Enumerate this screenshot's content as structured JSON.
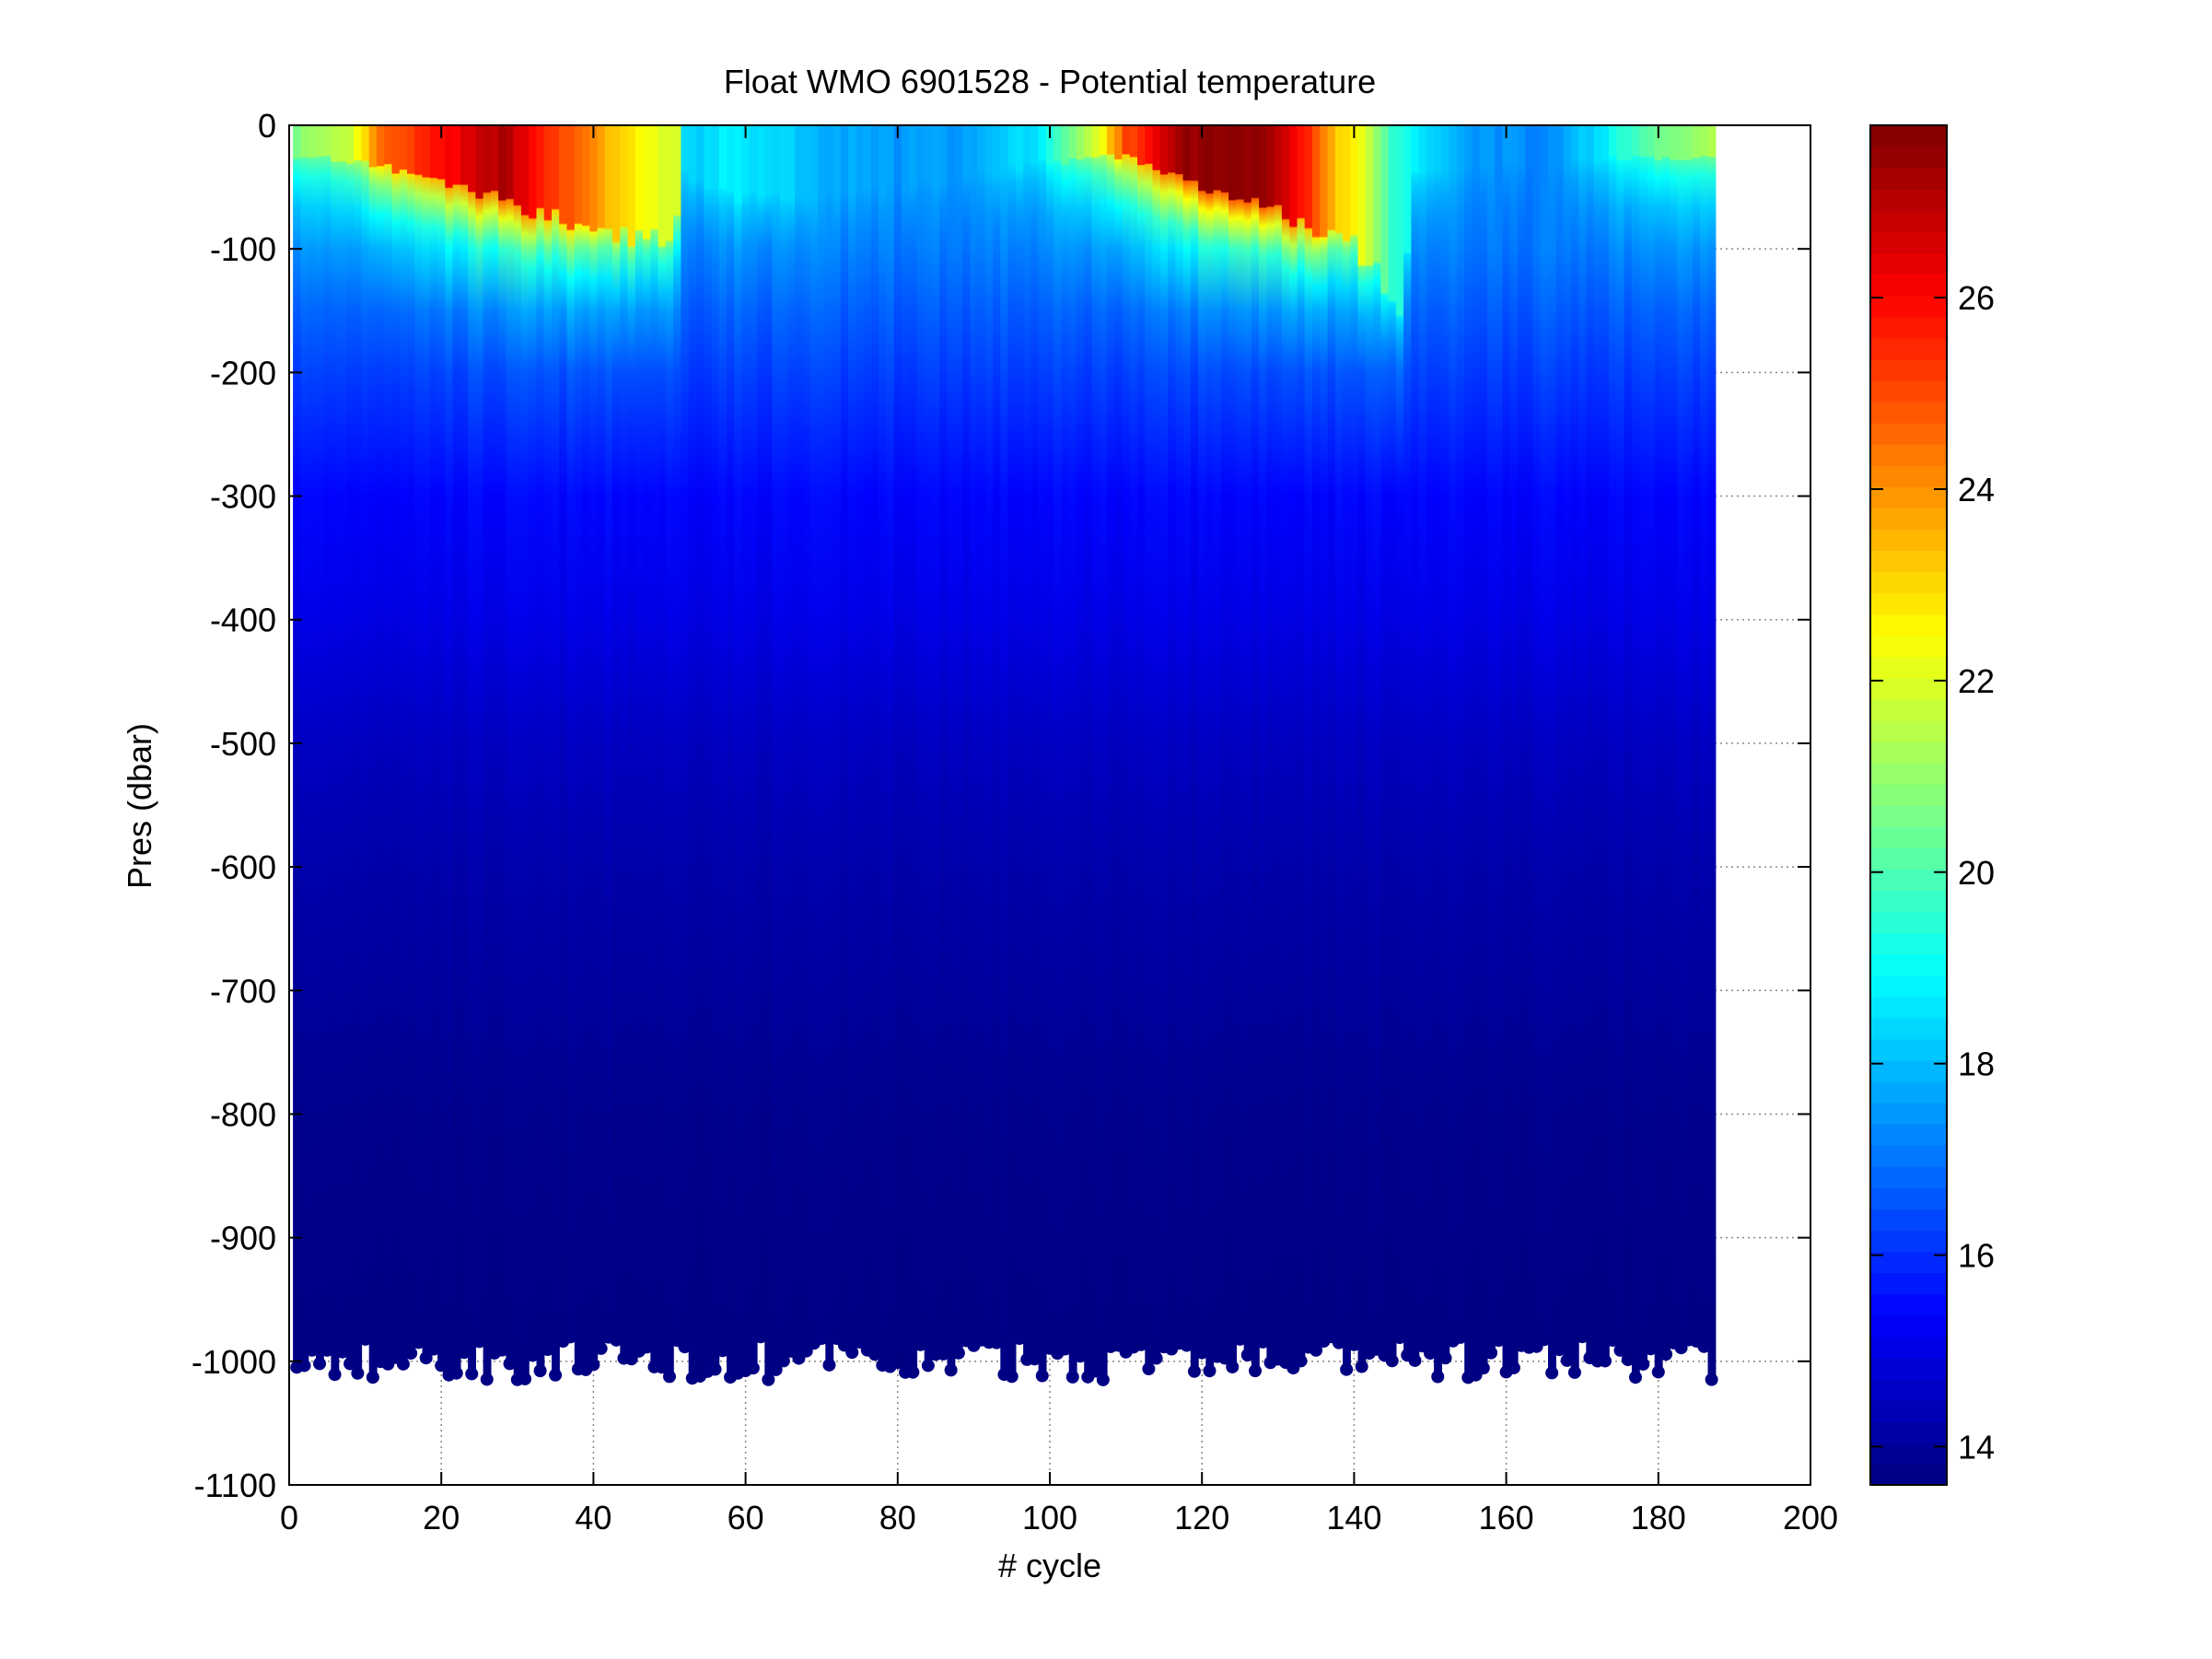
{
  "chart_data": {
    "type": "heatmap",
    "title": "Float WMO 6901528 - Potential temperature",
    "xlabel": "# cycle",
    "ylabel": "Pres (dbar)",
    "xlim": [
      0,
      200
    ],
    "ylim": [
      -1100,
      0
    ],
    "xticks": [
      0,
      20,
      40,
      60,
      80,
      100,
      120,
      140,
      160,
      180,
      200
    ],
    "yticks": [
      0,
      -100,
      -200,
      -300,
      -400,
      -500,
      -600,
      -700,
      -800,
      -900,
      -1000,
      -1100
    ],
    "grid": true,
    "colormap": "jet",
    "colorbar": {
      "range": [
        13.6,
        27.8
      ],
      "ticks": [
        14,
        16,
        18,
        20,
        22,
        24,
        26
      ],
      "placement": "right"
    },
    "cycles": [
      1,
      187
    ],
    "surface_temp_keyframes": [
      [
        1,
        20.8
      ],
      [
        8,
        21.5
      ],
      [
        12,
        24.5
      ],
      [
        18,
        25.5
      ],
      [
        24,
        26.5
      ],
      [
        28,
        27.2
      ],
      [
        33,
        25.8
      ],
      [
        38,
        24.5
      ],
      [
        43,
        23.2
      ],
      [
        47,
        22.3
      ],
      [
        51,
        21.8
      ],
      [
        52,
        18.2
      ],
      [
        58,
        18.7
      ],
      [
        64,
        18.4
      ],
      [
        70,
        17.8
      ],
      [
        80,
        17.5
      ],
      [
        90,
        17.6
      ],
      [
        98,
        18.6
      ],
      [
        103,
        20.5
      ],
      [
        107,
        22.5
      ],
      [
        110,
        25
      ],
      [
        114,
        26.2
      ],
      [
        118,
        27.5
      ],
      [
        128,
        27.6
      ],
      [
        131,
        26.8
      ],
      [
        134,
        25.5
      ],
      [
        137,
        23.5
      ],
      [
        141,
        22.2
      ],
      [
        145,
        19.5
      ],
      [
        150,
        18.5
      ],
      [
        155,
        17.6
      ],
      [
        165,
        17.2
      ],
      [
        172,
        18.5
      ],
      [
        178,
        20.2
      ],
      [
        187,
        21.3
      ]
    ],
    "mixed_layer_depth_keyframes": [
      [
        1,
        25
      ],
      [
        10,
        30
      ],
      [
        20,
        45
      ],
      [
        30,
        65
      ],
      [
        40,
        85
      ],
      [
        50,
        95
      ],
      [
        52,
        40
      ],
      [
        60,
        60
      ],
      [
        80,
        50
      ],
      [
        100,
        30
      ],
      [
        110,
        25
      ],
      [
        120,
        50
      ],
      [
        128,
        65
      ],
      [
        133,
        80
      ],
      [
        140,
        95
      ],
      [
        146,
        150
      ],
      [
        148,
        40
      ],
      [
        160,
        30
      ],
      [
        187,
        25
      ]
    ],
    "deep_profile": [
      [
        100,
        17.0
      ],
      [
        200,
        16.2
      ],
      [
        300,
        15.4
      ],
      [
        400,
        15.0
      ],
      [
        500,
        14.5
      ],
      [
        600,
        14.2
      ],
      [
        700,
        14.0
      ],
      [
        800,
        13.8
      ],
      [
        1000,
        13.65
      ]
    ],
    "max_pressure_range": [
      -1015,
      -980
    ]
  }
}
